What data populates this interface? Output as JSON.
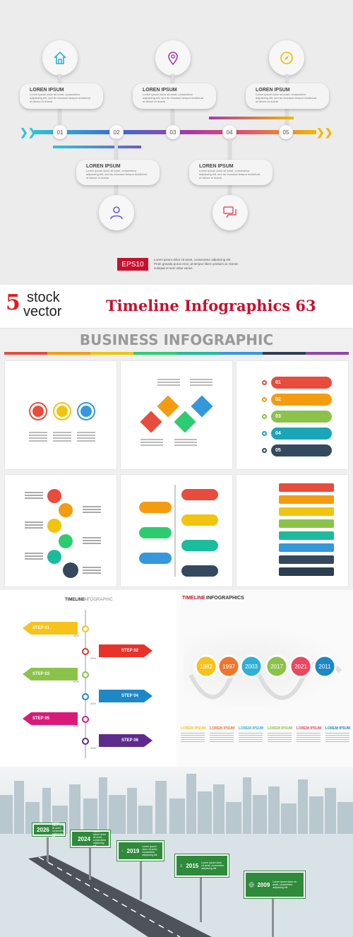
{
  "timeline_top": {
    "card_title": "LOREN IPSUM",
    "card_text": "Lorem ipsum dolor sit amet, consectetur adipiscing elit, sed do eiusmod tempor incididunt ut labore et dolore",
    "steps": [
      "01",
      "02",
      "03",
      "04",
      "05"
    ],
    "icons_top": [
      "home-icon",
      "map-pin-icon",
      "compass-icon"
    ],
    "icons_bottom": [
      "user-icon",
      "chat-icon"
    ],
    "eps_badge": "EPS10",
    "eps_text": "Lorem ipsum dolor sit amet, consectetur adipiscing elit. Proin gravida purus eros, at tempor libero pretium at. Donec volutpat et sem vitae varius.",
    "colors": {
      "bar_start": "#2ec4d6",
      "bar_mid": "#a73aa7",
      "bar_end": "#f0b800",
      "badge": "#c8102e"
    }
  },
  "title_strip": {
    "brand_number": "5",
    "brand_line1": "stock",
    "brand_line2": "vector",
    "title": "Timeline Infographics 63",
    "colors": {
      "number": "#e31b1b",
      "title": "#c8102e"
    }
  },
  "business": {
    "heading": "BUSINESS INFOGRAPHIC",
    "stripe_colors": [
      "#e74c3c",
      "#f39c12",
      "#f1c40f",
      "#2ecc71",
      "#1abc9c",
      "#3498db",
      "#2c3e50",
      "#8e44ad"
    ],
    "list_numbers": [
      "01",
      "02",
      "03",
      "04",
      "05"
    ],
    "list_colors": [
      "#e74c3c",
      "#f39c12",
      "#8bc34a",
      "#1aa6b7",
      "#34495e"
    ]
  },
  "arrow_panel": {
    "title_a": "TIMELINE",
    "title_b": "INFOGRAPHIC",
    "left_steps": [
      "STEP 01",
      "STEP 03",
      "STEP 05"
    ],
    "right_steps": [
      "STEP 02",
      "STEP 04",
      "STEP 06"
    ],
    "percents": [
      "60%",
      "20%",
      "30%",
      "40%",
      "50%",
      "10%"
    ]
  },
  "years_panel": {
    "title_a": "TIMELINE",
    "title_b": "INFOGRAPHICS",
    "years": [
      "1982",
      "1997",
      "2003",
      "2017",
      "2021",
      "2011"
    ],
    "label": "LOREM IPSUM",
    "colors": [
      "#f6c21c",
      "#f0762e",
      "#2fb0d6",
      "#8bc34a",
      "#e9485f",
      "#1e88c7"
    ]
  },
  "road_panel": {
    "signs": [
      {
        "year": "2026",
        "text": "Lorem ipsum dolor sit amet, consectetur adipiscing elit"
      },
      {
        "year": "2024",
        "text": "Lorem ipsum dolor sit amet, consectetur adipiscing elit"
      },
      {
        "year": "2019",
        "text": "Lorem ipsum dolor sit amet, consectetur adipiscing elit"
      },
      {
        "year": "2015",
        "text": "Lorem ipsum dolor sit amet, consectetur adipiscing elit"
      },
      {
        "year": "2009",
        "text": "Lorem ipsum dolor sit amet, consectetur adipiscing elit"
      }
    ]
  }
}
